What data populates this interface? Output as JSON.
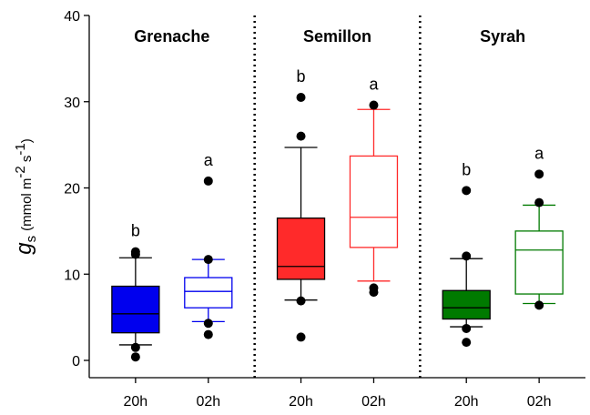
{
  "chart_data": {
    "type": "box",
    "ylabel": {
      "symbol": "g",
      "subscript": "s",
      "unit_open": "(mmol m",
      "unit_exp1": "-2",
      "unit_mid": " s",
      "unit_exp2": "-1",
      "unit_close": ")"
    },
    "ylim": [
      0,
      40
    ],
    "yticks": [
      "0",
      "10",
      "20",
      "30",
      "40"
    ],
    "groups": [
      {
        "title": "Grenache",
        "color": "#0000ee",
        "boxes": [
          {
            "x_label": "20h",
            "filled": true,
            "q1": 3.2,
            "median": 5.4,
            "q3": 8.6,
            "whisker_low": 1.8,
            "whisker_high": 11.9,
            "outliers": [
              0.4,
              1.5,
              12.3,
              12.6
            ],
            "letter": "b"
          },
          {
            "x_label": "02h",
            "filled": false,
            "q1": 6.1,
            "median": 8.0,
            "q3": 9.6,
            "whisker_low": 4.5,
            "whisker_high": 11.7,
            "outliers": [
              3.0,
              4.3,
              11.7,
              20.8
            ],
            "letter": "a"
          }
        ]
      },
      {
        "title": "Semillon",
        "color": "#ff2a2a",
        "boxes": [
          {
            "x_label": "20h",
            "filled": true,
            "q1": 9.4,
            "median": 10.9,
            "q3": 16.5,
            "whisker_low": 7.0,
            "whisker_high": 24.7,
            "outliers": [
              2.7,
              6.9,
              26.0,
              30.5
            ],
            "letter": "b"
          },
          {
            "x_label": "02h",
            "filled": false,
            "q1": 13.1,
            "median": 16.6,
            "q3": 23.7,
            "whisker_low": 9.2,
            "whisker_high": 29.1,
            "outliers": [
              7.9,
              8.4,
              29.6
            ],
            "letter": "a"
          }
        ]
      },
      {
        "title": "Syrah",
        "color": "#007a00",
        "boxes": [
          {
            "x_label": "20h",
            "filled": true,
            "q1": 4.8,
            "median": 6.1,
            "q3": 8.1,
            "whisker_low": 3.9,
            "whisker_high": 11.8,
            "outliers": [
              2.1,
              3.7,
              12.1,
              19.7
            ],
            "letter": "b"
          },
          {
            "x_label": "02h",
            "filled": false,
            "q1": 7.7,
            "median": 12.8,
            "q3": 15.0,
            "whisker_low": 6.6,
            "whisker_high": 18.0,
            "outliers": [
              6.4,
              18.3,
              21.6
            ],
            "letter": "a"
          }
        ]
      }
    ]
  }
}
